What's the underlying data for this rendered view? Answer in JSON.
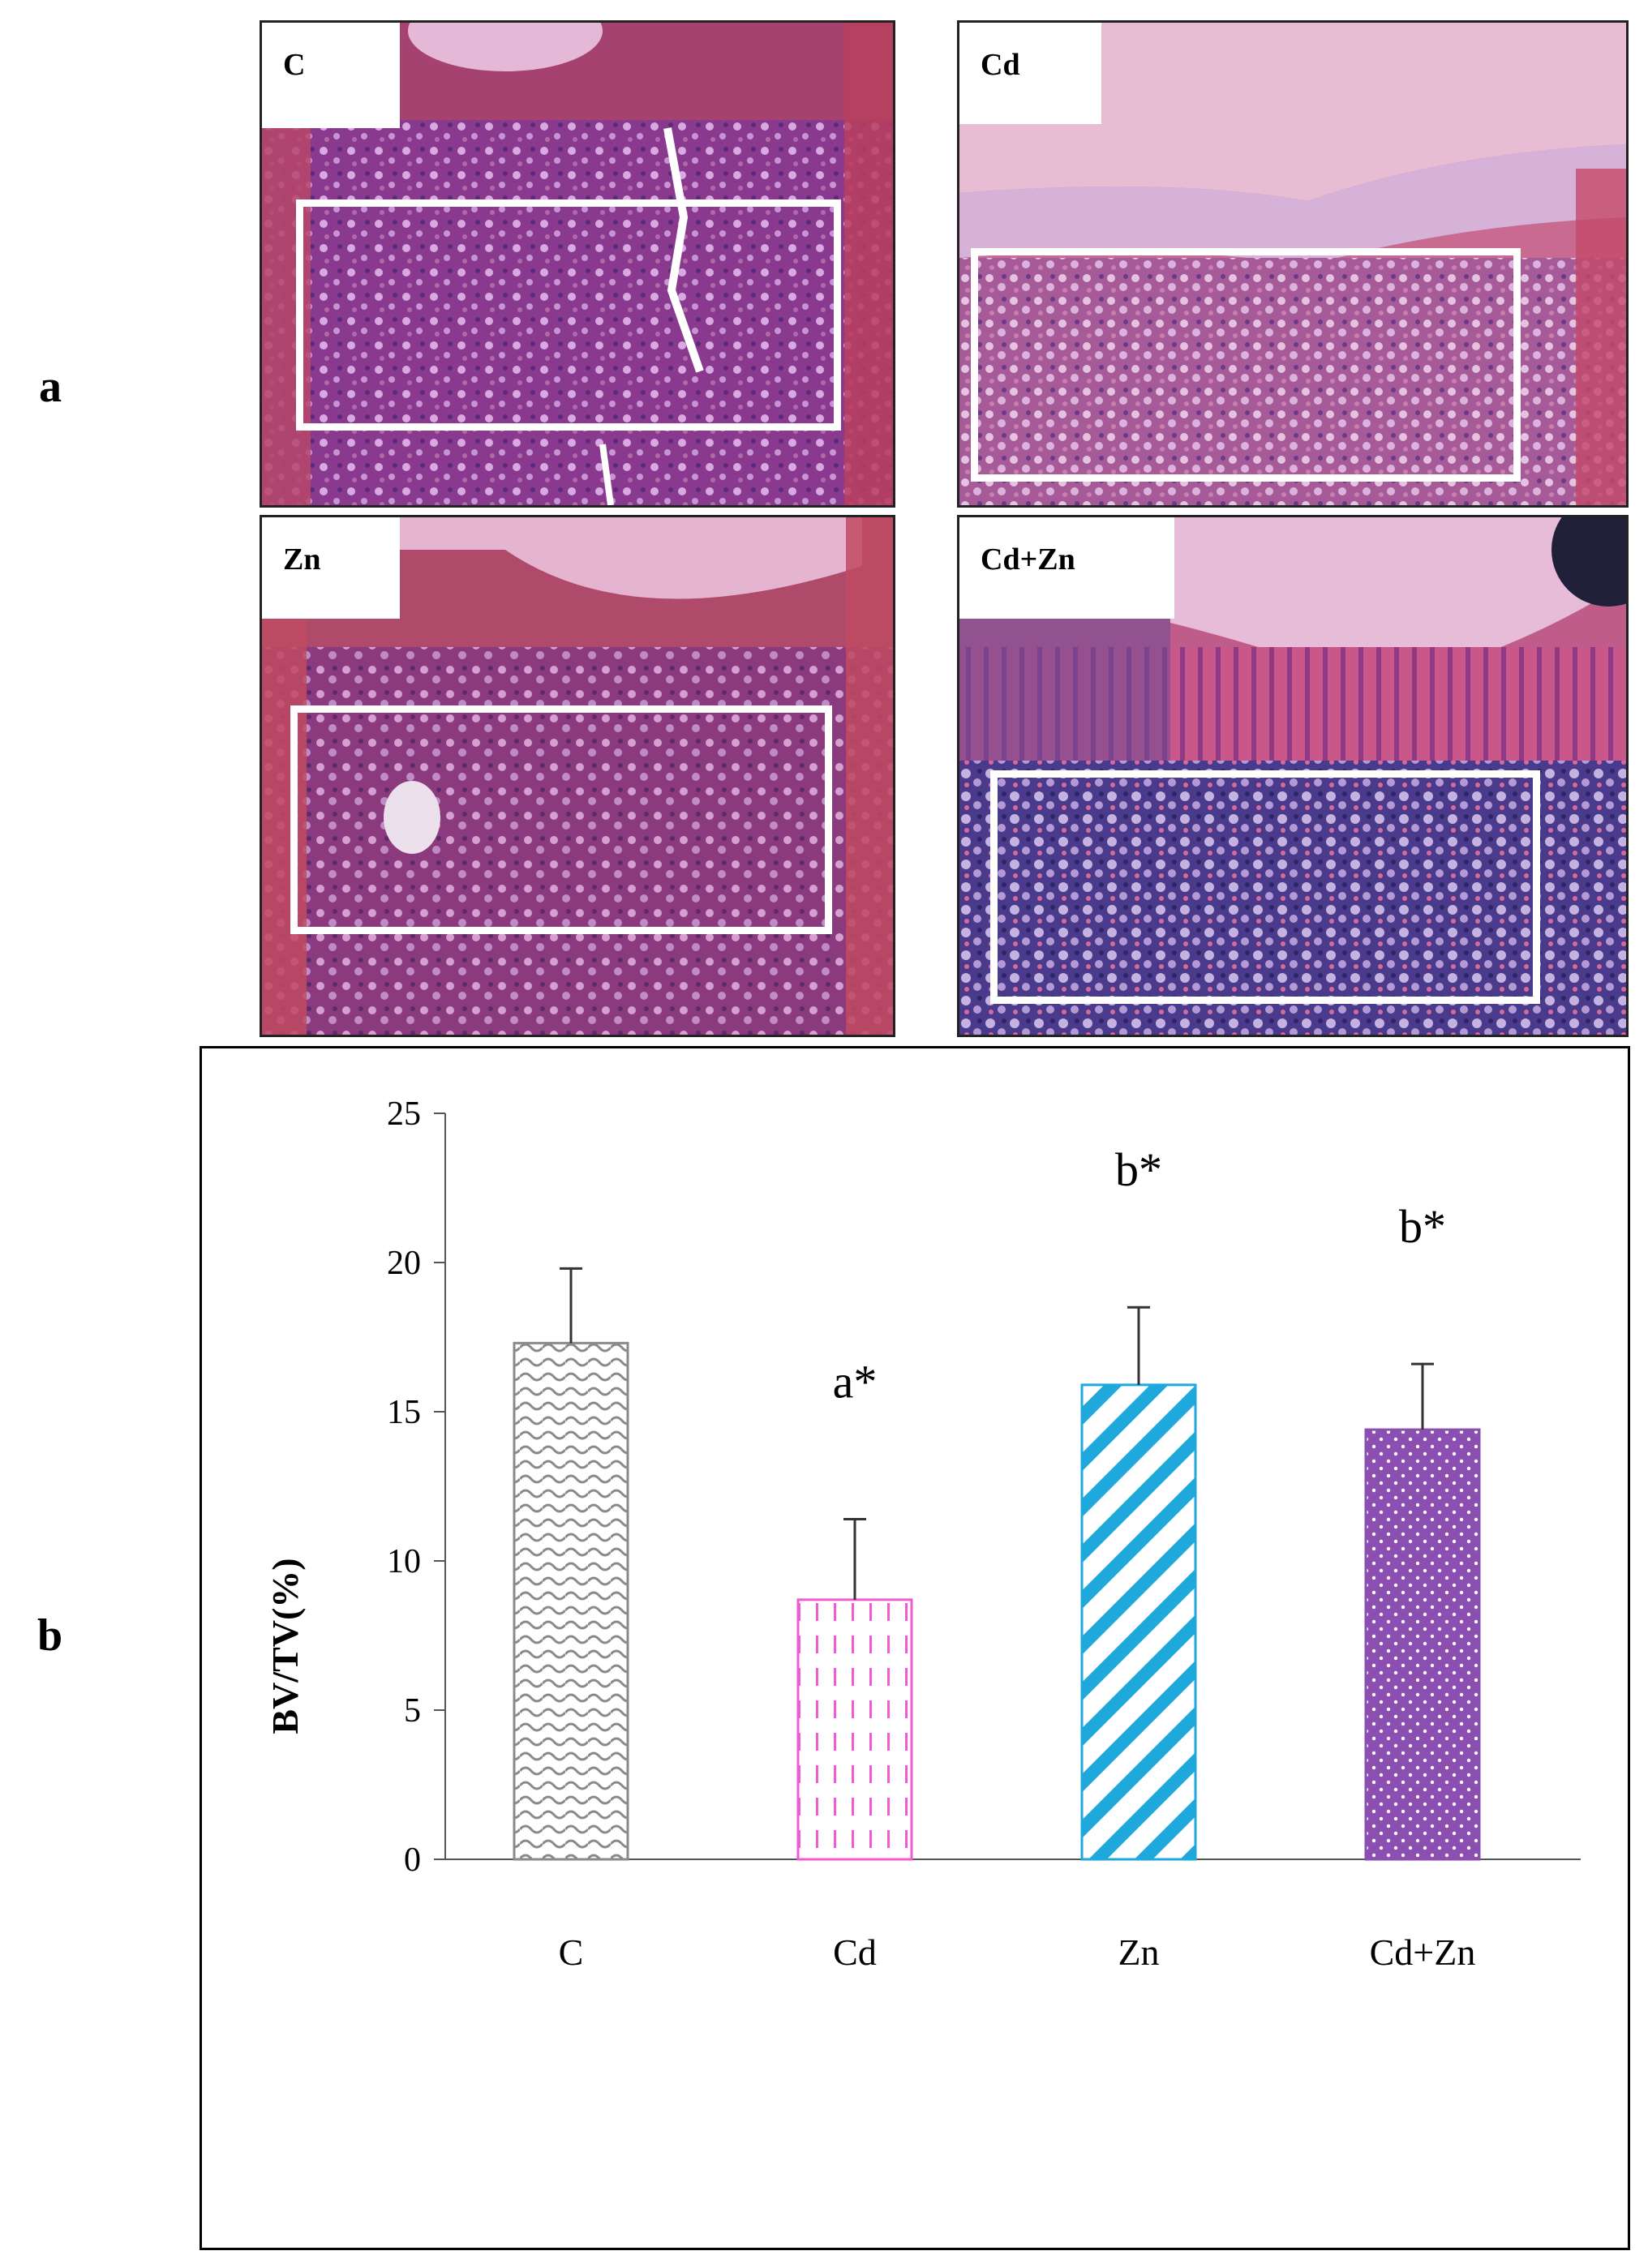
{
  "panel_a": {
    "letter": "a",
    "images": [
      {
        "label": "C"
      },
      {
        "label": "Cd"
      },
      {
        "label": "Zn"
      },
      {
        "label": "Cd+Zn"
      }
    ]
  },
  "panel_b": {
    "letter": "b"
  },
  "chart_data": {
    "type": "bar",
    "categories": [
      "C",
      "Cd",
      "Zn",
      "Cd+Zn"
    ],
    "values": [
      17.3,
      8.7,
      15.9,
      14.4
    ],
    "errors": [
      2.5,
      2.7,
      2.6,
      2.2
    ],
    "annotations": [
      "",
      "a*",
      "b*",
      "b*"
    ],
    "ylabel": "BV/TV(%)",
    "xlabel": "",
    "ylim": [
      0,
      25
    ],
    "yticks": [
      0,
      5,
      10,
      15,
      20,
      25
    ],
    "grid": false,
    "legend": "none",
    "bar_styles": [
      {
        "pattern": "wave",
        "color": "#8a8a8a"
      },
      {
        "pattern": "dashed-vertical",
        "color": "#f05ad2"
      },
      {
        "pattern": "diagonal-stripes",
        "color": "#1fa8dc"
      },
      {
        "pattern": "dots",
        "color": "#8a4fb0"
      }
    ]
  }
}
